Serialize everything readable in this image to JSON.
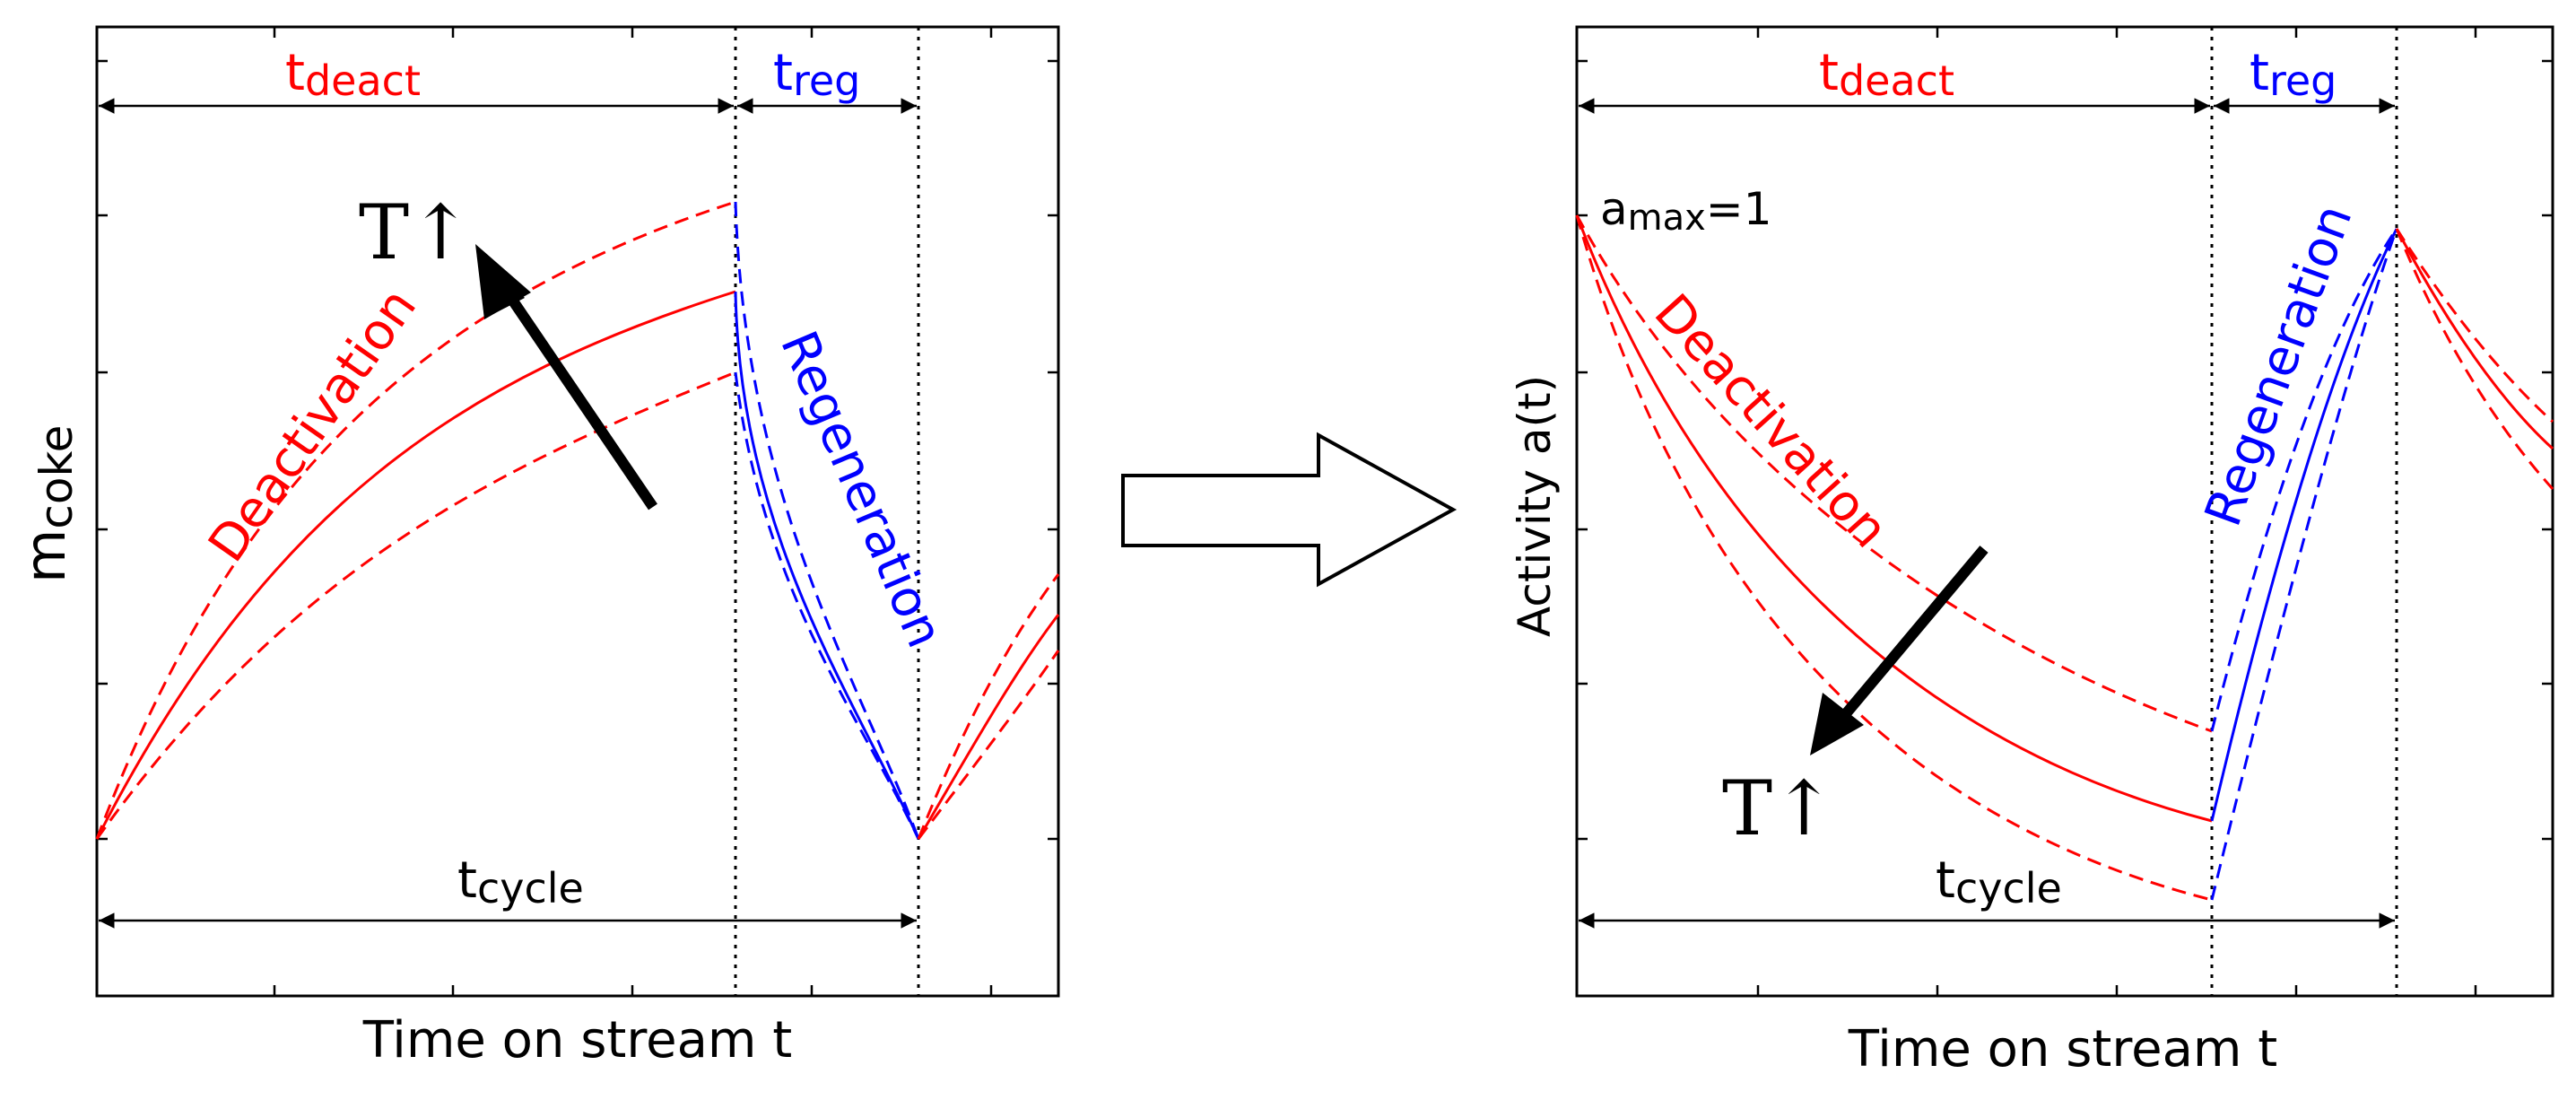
{
  "colors": {
    "deactivation": "#ff0000",
    "regeneration": "#0000ff",
    "frame": "#000000",
    "text": "#000000"
  },
  "left_panel": {
    "y_label_main": "m",
    "y_label_sub": "coke",
    "x_label": "Time on stream t",
    "t_deact_main": "t",
    "t_deact_sub": "deact",
    "t_reg_main": "t",
    "t_reg_sub": "reg",
    "t_cycle_main": "t",
    "t_cycle_sub": "cycle",
    "deactivation_label": "Deactivation",
    "regeneration_label": "Regeneration",
    "temperature_label": "T↑"
  },
  "right_panel": {
    "y_label": "Activity a(t)",
    "x_label": "Time on stream t",
    "t_deact_main": "t",
    "t_deact_sub": "deact",
    "t_reg_main": "t",
    "t_reg_sub": "reg",
    "t_cycle_main": "t",
    "t_cycle_sub": "cycle",
    "amax_main": "a",
    "amax_sub": "max",
    "amax_value": "=1",
    "deactivation_label": "Deactivation",
    "regeneration_label": "Regeneration",
    "temperature_label": "T↑"
  },
  "transition_arrow_icon": "hollow-right-arrow-icon"
}
